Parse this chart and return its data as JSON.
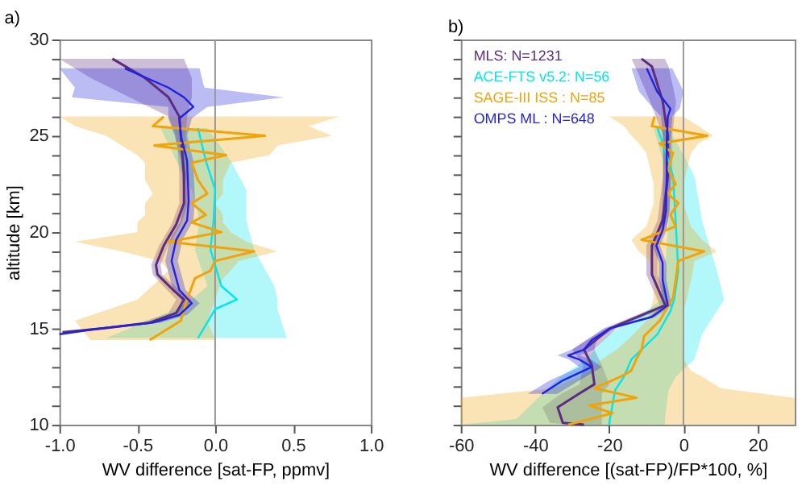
{
  "chart_data": [
    {
      "type": "line",
      "orientation": "horizontal",
      "title": "a)",
      "xlabel": "WV difference [sat-FP, ppmv]",
      "ylabel": "altitude [km]",
      "xlim": [
        -1.0,
        1.0
      ],
      "xticks": [
        {
          "value": -1.0,
          "label": "-1.0"
        },
        {
          "value": -0.5,
          "label": "-0.5"
        },
        {
          "value": 0,
          "label": "0.0"
        },
        {
          "value": 0.5,
          "label": "0.5"
        },
        {
          "value": 1.0,
          "label": "1.0"
        }
      ],
      "ylim": [
        10,
        30
      ],
      "yticks": [
        10,
        {
          "value": 11,
          "label": null
        },
        {
          "value": 12,
          "label": null
        },
        {
          "value": 13,
          "label": null
        },
        {
          "value": 14,
          "label": null
        },
        15,
        {
          "value": 16,
          "label": null
        },
        {
          "value": 17,
          "label": null
        },
        {
          "value": 18,
          "label": null
        },
        {
          "value": 19,
          "label": null
        },
        20,
        {
          "value": 21,
          "label": null
        },
        {
          "value": 22,
          "label": null
        },
        {
          "value": 23,
          "label": null
        },
        {
          "value": 24,
          "label": null
        },
        25,
        {
          "value": 26,
          "label": null
        },
        {
          "value": 27,
          "label": null
        },
        {
          "value": 28,
          "label": null
        },
        {
          "value": 29,
          "label": null
        },
        30
      ],
      "grid": false,
      "line_style": "solid",
      "marker": "none",
      "ref_lines": [
        {
          "axis": "x",
          "value": 0,
          "color": "#999999"
        }
      ],
      "series": [
        {
          "color": "#5b2c7f",
          "x": [
            29.0,
            28.0,
            27.0,
            26.0,
            25.0,
            23.0,
            21.5,
            20.4,
            19.3,
            18.3,
            17.8,
            17.0,
            16.5,
            15.8,
            15.3,
            15.0,
            14.8
          ],
          "values": [
            -0.66,
            -0.45,
            -0.3,
            -0.23,
            -0.22,
            -0.2,
            -0.2,
            -0.25,
            -0.33,
            -0.38,
            -0.37,
            -0.27,
            -0.2,
            -0.25,
            -0.42,
            -0.72,
            -0.98
          ],
          "lower": [
            -1.0,
            -0.8,
            -0.55,
            -0.3,
            -0.25,
            -0.23,
            -0.23,
            -0.28,
            -0.36,
            -0.41,
            -0.4,
            -0.31,
            -0.25,
            -0.3,
            -0.48,
            -0.78,
            -1.0
          ],
          "upper": [
            -0.2,
            -0.15,
            -0.15,
            -0.18,
            -0.19,
            -0.17,
            -0.17,
            -0.22,
            -0.3,
            -0.35,
            -0.34,
            -0.23,
            -0.15,
            -0.2,
            -0.36,
            -0.66,
            -0.94
          ]
        },
        {
          "color": "#00e5ee",
          "x": [
            25.4,
            23.7,
            22.2,
            20.6,
            19.1,
            17.2,
            16.5,
            16.0,
            14.5
          ],
          "values": [
            -0.11,
            -0.06,
            0.0,
            -0.01,
            -0.03,
            0.04,
            0.14,
            0.0,
            -0.11
          ],
          "lower": [
            -0.35,
            -0.25,
            -0.15,
            -0.1,
            -0.13,
            -0.05,
            -0.15,
            -0.25,
            -0.7
          ],
          "upper": [
            -0.05,
            0.1,
            0.2,
            0.2,
            0.25,
            0.38,
            0.4,
            0.4,
            0.46
          ]
        },
        {
          "color": "#f0a30a",
          "x": [
            26.0,
            25.5,
            25.0,
            24.5,
            24.0,
            23.6,
            22.7,
            22.0,
            21.5,
            20.9,
            20.5,
            20.0,
            19.5,
            19.0,
            18.5,
            18.0,
            17.6,
            16.5,
            15.4,
            14.4
          ],
          "values": [
            -0.33,
            -0.4,
            0.32,
            -0.39,
            0.07,
            -0.15,
            -0.11,
            -0.05,
            -0.15,
            -0.06,
            -0.15,
            0.04,
            -0.3,
            0.25,
            0.0,
            -0.03,
            -0.13,
            -0.18,
            -0.22,
            -0.42
          ],
          "lower": [
            -1.0,
            -0.9,
            -0.7,
            -0.6,
            -0.5,
            -0.45,
            -0.45,
            -0.4,
            -0.45,
            -0.45,
            -0.5,
            -0.5,
            -0.9,
            -0.6,
            -0.35,
            -0.3,
            -0.35,
            -0.5,
            -0.9,
            -0.8
          ],
          "upper": [
            0.8,
            0.6,
            0.75,
            0.4,
            0.35,
            0.1,
            0.05,
            0.05,
            0.0,
            0.05,
            0.05,
            0.1,
            0.2,
            0.4,
            0.15,
            0.1,
            0.05,
            0.0,
            -0.05,
            0.0
          ]
        },
        {
          "color": "#2222dd",
          "x": [
            28.5,
            27.5,
            27.0,
            26.5,
            25.9,
            25.0,
            23.7,
            21.6,
            20.6,
            19.6,
            18.5,
            17.6,
            17.0,
            16.3,
            15.7,
            15.3,
            15.0,
            14.7
          ],
          "values": [
            -0.58,
            -0.3,
            -0.2,
            -0.14,
            -0.23,
            -0.22,
            -0.18,
            -0.17,
            -0.18,
            -0.25,
            -0.28,
            -0.25,
            -0.23,
            -0.15,
            -0.23,
            -0.4,
            -0.74,
            -1.0
          ],
          "lower": [
            -1.0,
            -0.9,
            -0.92,
            -0.3,
            -0.3,
            -0.26,
            -0.22,
            -0.2,
            -0.22,
            -0.29,
            -0.32,
            -0.29,
            -0.27,
            -0.2,
            -0.28,
            -0.45,
            -0.8,
            -1.0
          ],
          "upper": [
            -0.1,
            -0.07,
            0.44,
            -0.05,
            -0.15,
            -0.18,
            -0.14,
            -0.13,
            -0.14,
            -0.21,
            -0.24,
            -0.21,
            -0.19,
            -0.1,
            -0.18,
            -0.35,
            -0.68,
            -0.95
          ]
        }
      ]
    },
    {
      "type": "line",
      "orientation": "horizontal",
      "title": "b)",
      "xlabel": "WV difference [(sat-FP)/FP*100, %]",
      "xlim": [
        -60,
        30
      ],
      "xticks": [
        -60,
        -40,
        -20,
        0,
        20
      ],
      "ylim": [
        10,
        30
      ],
      "yticks": [
        10,
        11,
        12,
        13,
        14,
        15,
        16,
        17,
        18,
        19,
        20,
        21,
        22,
        23,
        24,
        25,
        26,
        27,
        28,
        29,
        30
      ],
      "tick_labels": "x",
      "grid": false,
      "legend": "top left",
      "line_style": "solid",
      "marker": "none",
      "ref_lines": [
        {
          "axis": "x",
          "value": 0,
          "color": "#999999"
        }
      ],
      "series": [
        {
          "name": "MLS: N=1231",
          "color": "#5b2c7f",
          "x": [
            29.0,
            28.6,
            26.8,
            25.0,
            22.9,
            20.6,
            19.3,
            17.8,
            16.2,
            15.0,
            13.9,
            13.1,
            12.1,
            11.6,
            10.9,
            10.1,
            10.0
          ],
          "values": [
            -11.3,
            -8.5,
            -5.6,
            -4.2,
            -4.2,
            -5.6,
            -8.5,
            -8.5,
            -4.9,
            -19.8,
            -26.8,
            -24.7,
            -24,
            -28.2,
            -33.9,
            -32.5,
            -26.8
          ],
          "lower": [
            -14,
            -13,
            -9,
            -5.5,
            -5.5,
            -7,
            -10,
            -10,
            -6.3,
            -21.5,
            -30,
            -27,
            -28,
            -33,
            -38,
            -36,
            -30
          ],
          "upper": [
            -5,
            -4,
            -2,
            -3,
            -3,
            -4.2,
            -7,
            -7,
            -3.5,
            -18,
            -24,
            -22,
            -20,
            -22,
            -22,
            -22,
            -22
          ]
        },
        {
          "name": "ACE-FTS v5.2: N=56",
          "color": "#00e5ee",
          "x": [
            25.4,
            24.0,
            22.9,
            20.6,
            18.0,
            16.5,
            15.9,
            14.7,
            13.4,
            12.5,
            11.8,
            10.3,
            10.0
          ],
          "values": [
            -7,
            -4.5,
            -2.8,
            -2.1,
            -1.4,
            -2.5,
            -3.5,
            -7,
            -14,
            -16,
            -18.4,
            -19.8,
            -20
          ],
          "lower": [
            -8,
            -6,
            -4,
            -4,
            -5,
            -6,
            -10,
            -20,
            -26,
            -33,
            -37,
            -45,
            -60
          ],
          "upper": [
            -4,
            0,
            3,
            5,
            9,
            11,
            9,
            5,
            3,
            -2,
            -4,
            -5,
            -5
          ]
        },
        {
          "name": "SAGE-III ISS : N=85",
          "color": "#f0a30a",
          "x": [
            26.0,
            25.5,
            25.0,
            24.6,
            24.1,
            23.3,
            22.5,
            22.0,
            21.5,
            20.9,
            20.3,
            19.6,
            19.0,
            18.5,
            17.5,
            16.6,
            15.9,
            15.4,
            14.6,
            13.9,
            13.4,
            12.8,
            12.5,
            11.9,
            11.4,
            11.0,
            10.6,
            10.0
          ],
          "values": [
            -7.8,
            -8.5,
            6.4,
            -6.4,
            -2.8,
            -4.2,
            -2.1,
            -4.2,
            -1.4,
            -3.5,
            -2.1,
            -11.3,
            5.6,
            -1.4,
            -2.1,
            -2.8,
            -4.9,
            -6.4,
            -10.6,
            -11.3,
            -12.7,
            -14.1,
            -16.9,
            -24,
            -12.7,
            -25.4,
            -19.1,
            -31.1
          ],
          "lower": [
            -20,
            -16,
            -14,
            -12,
            -10,
            -9,
            -8,
            -8,
            -8,
            -9,
            -10,
            -14,
            -12,
            -9,
            -8,
            -8,
            -9,
            -10,
            -14,
            -18,
            -22,
            -25,
            -28,
            -35,
            -60,
            -60,
            -60,
            -60
          ],
          "upper": [
            0,
            4,
            8,
            4,
            2,
            1,
            0,
            0,
            0,
            1,
            2,
            5,
            9,
            3,
            2,
            1,
            0,
            0,
            0,
            0,
            0,
            2,
            5,
            10,
            30,
            30,
            30,
            30
          ]
        },
        {
          "name": "OMPS ML : N=648",
          "color": "#2222dd",
          "x": [
            28.5,
            27.3,
            26.4,
            26.0,
            24.7,
            22.9,
            21.1,
            20.1,
            19.3,
            18.4,
            17.5,
            16.2,
            15.6,
            15.0,
            14.4,
            13.9,
            13.6,
            13.4,
            13.0,
            12.3,
            11.6
          ],
          "values": [
            -9.9,
            -7.1,
            -3.5,
            -4.2,
            -4.5,
            -4.5,
            -4.7,
            -5.6,
            -7.3,
            -5.6,
            -5.6,
            -4.2,
            -8.5,
            -19.8,
            -24.7,
            -26.8,
            -31.1,
            -28.2,
            -24.7,
            -32.5,
            -38.1
          ],
          "lower": [
            -14,
            -12,
            -8,
            -6,
            -5.5,
            -5.5,
            -5.7,
            -6.6,
            -8.3,
            -6.6,
            -6.6,
            -5.2,
            -9.5,
            -21,
            -26,
            -30,
            -34,
            -31,
            -28,
            -36,
            -42
          ],
          "upper": [
            -3,
            0,
            -1,
            -3,
            -3.5,
            -3.5,
            -3.7,
            -4.6,
            -6.3,
            -4.6,
            -4.6,
            -3.2,
            -7.5,
            -18.6,
            -23.4,
            -24,
            -28,
            -25,
            -22,
            -28,
            -34
          ]
        }
      ]
    }
  ]
}
